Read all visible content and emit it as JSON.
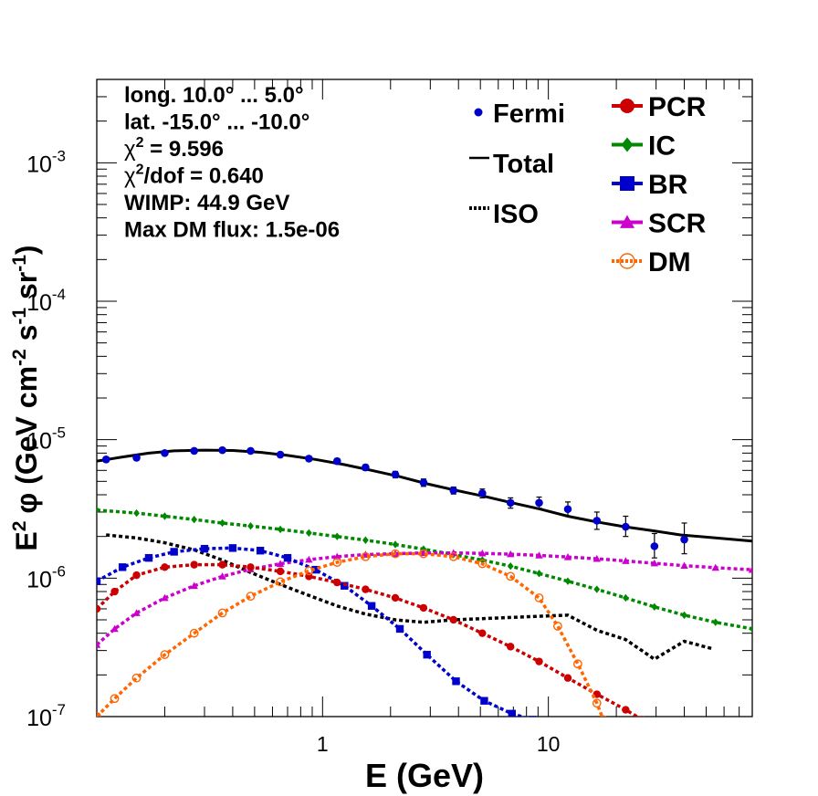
{
  "chart_data": {
    "type": "scatter",
    "xlabel": "E (GeV)",
    "ylabel": "E² φ (GeV cm⁻² s⁻¹ sr⁻¹)",
    "ylabel_parts": {
      "e": "E",
      "e_sup": "2",
      "phi": "φ (GeV cm",
      "cm_sup": "-2",
      "s": " s",
      "s_sup": "-1",
      "sr": " sr",
      "sr_sup": "-1",
      "close": ")"
    },
    "xscale": "log",
    "yscale": "log",
    "xlim": [
      0.1,
      80
    ],
    "ylim": [
      1e-07,
      0.004
    ],
    "x_ticks": [
      {
        "value": 1,
        "label": "1"
      },
      {
        "value": 10,
        "label": "10"
      }
    ],
    "y_ticks": [
      {
        "value": 1e-07,
        "base": "10",
        "exp": "-7"
      },
      {
        "value": 1e-06,
        "base": "10",
        "exp": "-6"
      },
      {
        "value": 1e-05,
        "base": "10",
        "exp": "-5"
      },
      {
        "value": 0.0001,
        "base": "10",
        "exp": "-4"
      },
      {
        "value": 0.001,
        "base": "10",
        "exp": "-3"
      }
    ],
    "info_lines": [
      {
        "text": "long. 10.0° ... 5.0°"
      },
      {
        "text": "lat. -15.0° ... -10.0°"
      },
      {
        "pre": "χ",
        "sup": "2",
        "post": " = 9.596"
      },
      {
        "pre": "χ",
        "sup": "2",
        "post": "/dof = 0.640"
      },
      {
        "text": "WIMP: 44.9 GeV"
      },
      {
        "text": "Max DM flux: 1.5e-06"
      }
    ],
    "legend": {
      "left": [
        {
          "label": "Fermi",
          "series": "Fermi"
        },
        {
          "label": "Total",
          "series": "Total"
        },
        {
          "label": "ISO",
          "series": "ISO"
        }
      ],
      "right": [
        {
          "label": "PCR",
          "series": "PCR"
        },
        {
          "label": "IC",
          "series": "IC"
        },
        {
          "label": "BR",
          "series": "BR"
        },
        {
          "label": "SCR",
          "series": "SCR"
        },
        {
          "label": "DM",
          "series": "DM"
        }
      ]
    },
    "series": [
      {
        "name": "Fermi",
        "color": "#0000cc",
        "marker": "dot",
        "points": [
          {
            "x": 0.11,
            "y": 7.2e-06,
            "lo": 6.9e-06,
            "hi": 7.5e-06
          },
          {
            "x": 0.15,
            "y": 7.4e-06,
            "lo": 7.1e-06,
            "hi": 7.7e-06
          },
          {
            "x": 0.2,
            "y": 8e-06,
            "lo": 7.7e-06,
            "hi": 8.3e-06
          },
          {
            "x": 0.27,
            "y": 8.3e-06,
            "lo": 8e-06,
            "hi": 8.6e-06
          },
          {
            "x": 0.36,
            "y": 8.4e-06,
            "lo": 8.1e-06,
            "hi": 8.7e-06
          },
          {
            "x": 0.48,
            "y": 8.3e-06,
            "lo": 8e-06,
            "hi": 8.6e-06
          },
          {
            "x": 0.65,
            "y": 7.8e-06,
            "lo": 7.5e-06,
            "hi": 8.1e-06
          },
          {
            "x": 0.87,
            "y": 7.3e-06,
            "lo": 7e-06,
            "hi": 7.6e-06
          },
          {
            "x": 1.16,
            "y": 7e-06,
            "lo": 6.7e-06,
            "hi": 7.3e-06
          },
          {
            "x": 1.55,
            "y": 6.3e-06,
            "lo": 6e-06,
            "hi": 6.6e-06
          },
          {
            "x": 2.1,
            "y": 5.6e-06,
            "lo": 5.3e-06,
            "hi": 5.9e-06
          },
          {
            "x": 2.8,
            "y": 4.9e-06,
            "lo": 4.6e-06,
            "hi": 5.2e-06
          },
          {
            "x": 3.8,
            "y": 4.3e-06,
            "lo": 4.05e-06,
            "hi": 4.55e-06
          },
          {
            "x": 5.1,
            "y": 4.1e-06,
            "lo": 3.8e-06,
            "hi": 4.4e-06
          },
          {
            "x": 6.8,
            "y": 3.5e-06,
            "lo": 3.2e-06,
            "hi": 3.8e-06
          },
          {
            "x": 9.1,
            "y": 3.5e-06,
            "lo": 3.2e-06,
            "hi": 3.85e-06
          },
          {
            "x": 12.2,
            "y": 3.15e-06,
            "lo": 2.8e-06,
            "hi": 3.55e-06
          },
          {
            "x": 16.4,
            "y": 2.6e-06,
            "lo": 2.25e-06,
            "hi": 3e-06
          },
          {
            "x": 22,
            "y": 2.35e-06,
            "lo": 2e-06,
            "hi": 2.8e-06
          },
          {
            "x": 29.5,
            "y": 1.7e-06,
            "lo": 1.4e-06,
            "hi": 2.1e-06
          },
          {
            "x": 40,
            "y": 1.9e-06,
            "lo": 1.5e-06,
            "hi": 2.5e-06
          }
        ]
      },
      {
        "name": "Total",
        "color": "#000000",
        "marker": "line",
        "x": [
          0.1,
          0.13,
          0.17,
          0.22,
          0.3,
          0.4,
          0.53,
          0.7,
          0.93,
          1.25,
          1.65,
          2.2,
          2.9,
          3.9,
          5.2,
          6.9,
          9.2,
          12.2,
          16.3,
          21.7,
          29,
          38.5,
          55,
          80
        ],
        "y": [
          7e-06,
          7.5e-06,
          8e-06,
          8.3e-06,
          8.4e-06,
          8.35e-06,
          8.1e-06,
          7.7e-06,
          7.2e-06,
          6.6e-06,
          6e-06,
          5.4e-06,
          4.8e-06,
          4.3e-06,
          3.9e-06,
          3.5e-06,
          3.15e-06,
          2.8e-06,
          2.55e-06,
          2.35e-06,
          2.2e-06,
          2.05e-06,
          1.95e-06,
          1.85e-06
        ]
      },
      {
        "name": "ISO",
        "color": "#000000",
        "marker": "dotted",
        "x": [
          0.11,
          0.15,
          0.2,
          0.27,
          0.36,
          0.48,
          0.65,
          0.87,
          1.16,
          1.55,
          2.1,
          2.8,
          3.8,
          5.1,
          6.8,
          9.1,
          12.2,
          16.4,
          22,
          29.5,
          40,
          53
        ],
        "y": [
          2.05e-06,
          1.95e-06,
          1.8e-06,
          1.6e-06,
          1.35e-06,
          1.1e-06,
          9e-07,
          7.5e-07,
          6.3e-07,
          5.5e-07,
          5e-07,
          4.8e-07,
          5e-07,
          5.1e-07,
          5.2e-07,
          5.3e-07,
          5.4e-07,
          4.2e-07,
          3.6e-07,
          2.6e-07,
          3.5e-07,
          3.1e-07
        ]
      },
      {
        "name": "PCR",
        "color": "#cc0000",
        "marker": "circle",
        "x": [
          0.1,
          0.12,
          0.15,
          0.2,
          0.27,
          0.36,
          0.48,
          0.65,
          0.87,
          1.16,
          1.55,
          2.1,
          2.8,
          3.8,
          5.1,
          6.8,
          9.1,
          12.2,
          16.4,
          22,
          26
        ],
        "y": [
          6e-07,
          8e-07,
          1.05e-06,
          1.2e-06,
          1.25e-06,
          1.25e-06,
          1.2e-06,
          1.12e-06,
          1.03e-06,
          9.3e-07,
          8.3e-07,
          7.2e-07,
          6.1e-07,
          5e-07,
          4e-07,
          3.2e-07,
          2.5e-07,
          1.9e-07,
          1.45e-07,
          1.12e-07,
          9.5e-08
        ]
      },
      {
        "name": "IC",
        "color": "#008800",
        "marker": "diamond",
        "x": [
          0.1,
          0.15,
          0.2,
          0.27,
          0.36,
          0.48,
          0.65,
          0.87,
          1.16,
          1.55,
          2.1,
          2.8,
          3.8,
          5.1,
          6.8,
          9.1,
          12.2,
          16.4,
          22,
          29.5,
          40,
          55,
          80
        ],
        "y": [
          3.1e-06,
          2.95e-06,
          2.8e-06,
          2.65e-06,
          2.5e-06,
          2.38e-06,
          2.25e-06,
          2.12e-06,
          2e-06,
          1.88e-06,
          1.75e-06,
          1.62e-06,
          1.48e-06,
          1.35e-06,
          1.22e-06,
          1.08e-06,
          9.5e-07,
          8.3e-07,
          7.2e-07,
          6.2e-07,
          5.4e-07,
          4.8e-07,
          4.3e-07
        ]
      },
      {
        "name": "BR",
        "color": "#0000cc",
        "marker": "square",
        "x": [
          0.1,
          0.13,
          0.17,
          0.22,
          0.3,
          0.4,
          0.53,
          0.7,
          0.93,
          1.25,
          1.65,
          2.2,
          2.9,
          3.9,
          5.2,
          6.9,
          8.5
        ],
        "y": [
          9.5e-07,
          1.2e-06,
          1.4e-06,
          1.55e-06,
          1.63e-06,
          1.65e-06,
          1.58e-06,
          1.4e-06,
          1.15e-06,
          8.8e-07,
          6.3e-07,
          4.3e-07,
          2.8e-07,
          1.8e-07,
          1.3e-07,
          1.05e-07,
          9.5e-08
        ]
      },
      {
        "name": "SCR",
        "color": "#cc00cc",
        "marker": "triangle",
        "x": [
          0.1,
          0.12,
          0.15,
          0.2,
          0.27,
          0.36,
          0.48,
          0.65,
          0.87,
          1.16,
          1.55,
          2.1,
          2.8,
          3.8,
          5.1,
          6.8,
          9.1,
          12.2,
          16.4,
          22,
          29.5,
          40,
          55,
          80
        ],
        "y": [
          3.3e-07,
          4.3e-07,
          5.6e-07,
          7.2e-07,
          8.8e-07,
          1.03e-06,
          1.16e-06,
          1.27e-06,
          1.36e-06,
          1.43e-06,
          1.48e-06,
          1.5e-06,
          1.52e-06,
          1.52e-06,
          1.51e-06,
          1.49e-06,
          1.46e-06,
          1.42e-06,
          1.38e-06,
          1.33e-06,
          1.28e-06,
          1.23e-06,
          1.19e-06,
          1.15e-06
        ]
      },
      {
        "name": "DM",
        "color": "#ff6600",
        "marker": "open-circle",
        "x": [
          0.1,
          0.12,
          0.15,
          0.2,
          0.27,
          0.36,
          0.48,
          0.65,
          0.87,
          1.16,
          1.55,
          2.1,
          2.8,
          3.8,
          5.1,
          6.8,
          9.1,
          11,
          13.5,
          16.4,
          17.5
        ],
        "y": [
          1e-07,
          1.35e-07,
          1.9e-07,
          2.8e-07,
          4e-07,
          5.6e-07,
          7.4e-07,
          9.4e-07,
          1.13e-06,
          1.3e-06,
          1.43e-06,
          1.5e-06,
          1.5e-06,
          1.43e-06,
          1.27e-06,
          1.03e-06,
          7.2e-07,
          4.5e-07,
          2.4e-07,
          1.25e-07,
          9.5e-08
        ]
      }
    ]
  }
}
